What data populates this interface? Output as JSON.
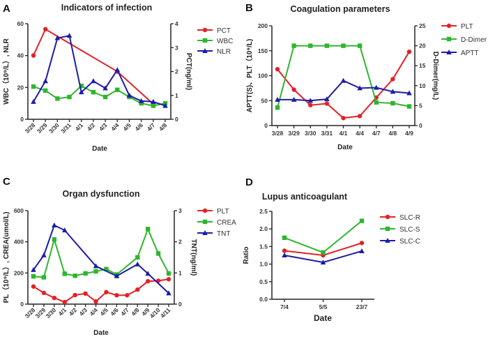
{
  "colors": {
    "red": "#e32127",
    "green": "#2fb52f",
    "blue": "#1c1ca8",
    "axis": "#222222"
  },
  "chart_data": [
    {
      "panel": "A",
      "type": "line",
      "title": "Indicators of infection",
      "xlabel": "Date",
      "ylabel": "WBC（10⁹/L）, NLR",
      "y2label": "PCT(ng/ml)",
      "ylim": [
        0,
        60
      ],
      "yticks": [
        0,
        20,
        40,
        60
      ],
      "y2lim": [
        0,
        4
      ],
      "y2ticks": [
        0,
        1,
        2,
        3,
        4
      ],
      "rotate_ticks": true,
      "legend": "right",
      "categories": [
        "3/28",
        "3/29",
        "3/30",
        "3/31",
        "4/1",
        "4/2",
        "4/3",
        "4/4",
        "4/5",
        "4/6",
        "4/7",
        "4/8"
      ],
      "series": [
        {
          "name": "PCT",
          "axis": "right",
          "marker": "circle",
          "color": "#e32127",
          "values": [
            2.67,
            3.77,
            null,
            null,
            null,
            null,
            null,
            2.0,
            null,
            null,
            0.64,
            null
          ]
        },
        {
          "name": "WBC",
          "axis": "left",
          "marker": "square",
          "color": "#2fb52f",
          "values": [
            20.5,
            18,
            13,
            14,
            21,
            17,
            14,
            18.5,
            14,
            10,
            8.5,
            10
          ]
        },
        {
          "name": "NLR",
          "axis": "left",
          "marker": "triangle",
          "color": "#1c1ca8",
          "values": [
            11,
            24,
            51,
            52.5,
            17,
            24,
            19.5,
            31,
            15,
            11.5,
            11,
            8.5
          ]
        }
      ]
    },
    {
      "panel": "B",
      "type": "line",
      "title": "Coagulation parameters",
      "xlabel": "Date",
      "ylabel": "APTT(S)、PLT（10⁹/L)",
      "y2label": "D-Dimer(mg/L)",
      "ylim": [
        0,
        200
      ],
      "yticks": [
        0,
        50,
        100,
        150,
        200
      ],
      "y2lim": [
        0,
        25
      ],
      "y2ticks": [
        0,
        5,
        10,
        15,
        20,
        25
      ],
      "rotate_ticks": false,
      "legend": "right",
      "categories": [
        "3/28",
        "3/29",
        "3/30",
        "3/31",
        "4/1",
        "4/4",
        "4/7",
        "4/8",
        "4/9"
      ],
      "series": [
        {
          "name": "PLT",
          "axis": "left",
          "marker": "circle",
          "color": "#e32127",
          "values": [
            113,
            72,
            41,
            44,
            15,
            19,
            56,
            93,
            148
          ]
        },
        {
          "name": "D-Dimer",
          "axis": "right",
          "marker": "square",
          "color": "#2fb52f",
          "values": [
            4.5,
            20,
            20,
            20,
            20,
            20,
            5.8,
            5.6,
            4.8
          ]
        },
        {
          "name": "APTT",
          "axis": "left",
          "marker": "triangle",
          "color": "#1c1ca8",
          "values": [
            52,
            52,
            50,
            53,
            90,
            75,
            76,
            68,
            65
          ]
        }
      ]
    },
    {
      "panel": "C",
      "type": "line",
      "title": "Organ dysfunction",
      "xlabel": "Date",
      "ylabel": "PL（10⁹/L）, CREA(umol/L)",
      "y2label": "TNT(ng/ml)",
      "ylim": [
        0,
        600
      ],
      "yticks": [
        0,
        200,
        400,
        600
      ],
      "y2lim": [
        0,
        3
      ],
      "y2ticks": [
        0,
        1,
        2,
        3
      ],
      "rotate_ticks": true,
      "legend": "right",
      "categories": [
        "3/28",
        "3/29",
        "3/30",
        "4/1",
        "4/2",
        "4/3",
        "4/4",
        "4/5",
        "4/6",
        "4/7",
        "4/8",
        "4/9",
        "4/10",
        "4/11"
      ],
      "series": [
        {
          "name": "PLT",
          "axis": "left",
          "marker": "circle",
          "color": "#e32127",
          "values": [
            113,
            72,
            40,
            13,
            58,
            68,
            17,
            77,
            57,
            57,
            93,
            147,
            150,
            160
          ]
        },
        {
          "name": "CREA",
          "axis": "left",
          "marker": "square",
          "color": "#2fb52f",
          "values": [
            178,
            172,
            415,
            195,
            182,
            197,
            210,
            225,
            190,
            null,
            300,
            482,
            325,
            197
          ]
        },
        {
          "name": "TNT",
          "axis": "right",
          "marker": "triangle",
          "color": "#1c1ca8",
          "values": [
            1.1,
            1.57,
            2.53,
            2.37,
            null,
            null,
            1.22,
            null,
            0.9,
            null,
            1.28,
            0.98,
            null,
            0.35
          ]
        }
      ]
    },
    {
      "panel": "D",
      "type": "line",
      "title": "Lupus anticoagulant",
      "xlabel": "Date",
      "ylabel": "Ratio",
      "ylim": [
        0,
        2.5
      ],
      "yticks": [
        "0.0",
        "0.5",
        "1.0",
        "1.5",
        "2.0",
        "2.5"
      ],
      "rotate_ticks": false,
      "legend": "right",
      "categories": [
        "7/4",
        "5/5",
        "23/7"
      ],
      "series": [
        {
          "name": "SLC-R",
          "axis": "left",
          "marker": "circle",
          "color": "#e32127",
          "values": [
            1.38,
            1.25,
            1.6
          ]
        },
        {
          "name": "SLC-S",
          "axis": "left",
          "marker": "square",
          "color": "#2fb52f",
          "values": [
            1.75,
            1.33,
            2.23
          ]
        },
        {
          "name": "SLC-C",
          "axis": "left",
          "marker": "triangle",
          "color": "#1c1ca8",
          "values": [
            1.25,
            1.05,
            1.37
          ]
        }
      ]
    }
  ]
}
